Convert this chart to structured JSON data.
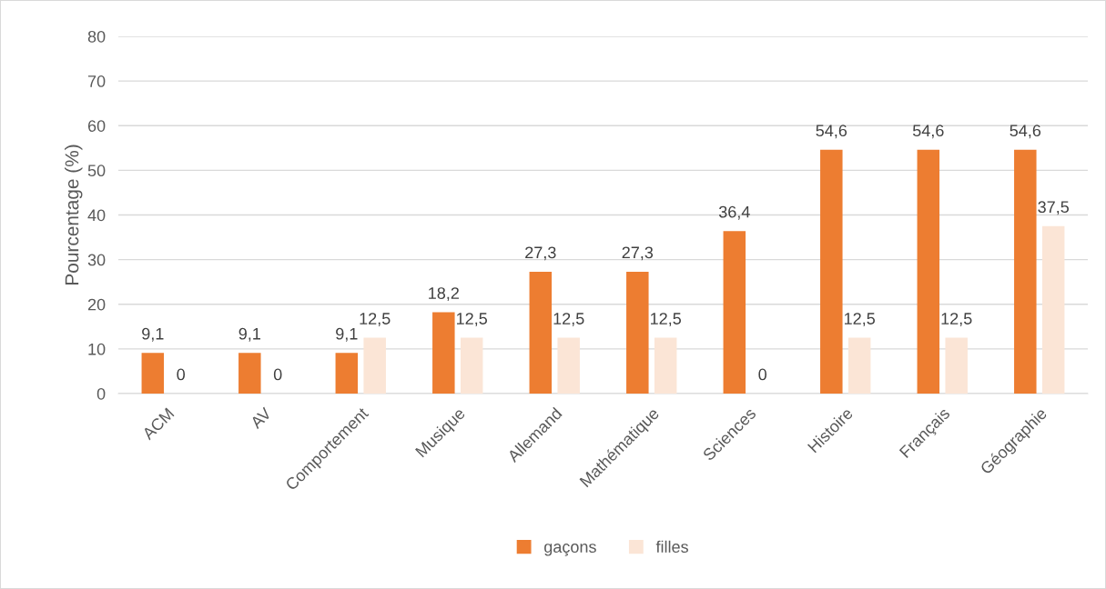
{
  "chart_data": {
    "type": "bar",
    "ylabel": "Pourcentage (%)",
    "categories": [
      "ACM",
      "AV",
      "Comportement",
      "Musique",
      "Allemand",
      "Mathématique",
      "Sciences",
      "Histoire",
      "Français",
      "Géographie"
    ],
    "series": [
      {
        "name": "gaçons",
        "color": "#ed7d31",
        "values": [
          9.1,
          9.1,
          9.1,
          18.2,
          27.3,
          27.3,
          36.4,
          54.6,
          54.6,
          54.6
        ],
        "value_labels": [
          "9,1",
          "9,1",
          "9,1",
          "18,2",
          "27,3",
          "27,3",
          "36,4",
          "54,6",
          "54,6",
          "54,6"
        ]
      },
      {
        "name": "filles",
        "color": "#fbe5d6",
        "values": [
          0,
          0,
          12.5,
          12.5,
          12.5,
          12.5,
          0,
          12.5,
          12.5,
          37.5
        ],
        "value_labels": [
          "0",
          "0",
          "12,5",
          "12,5",
          "12,5",
          "12,5",
          "0",
          "12,5",
          "12,5",
          "37,5"
        ]
      }
    ],
    "ylim": [
      0,
      80
    ],
    "yticks": [
      0,
      10,
      20,
      30,
      40,
      50,
      60,
      70,
      80
    ],
    "grid": "y",
    "legend": "bottom"
  }
}
